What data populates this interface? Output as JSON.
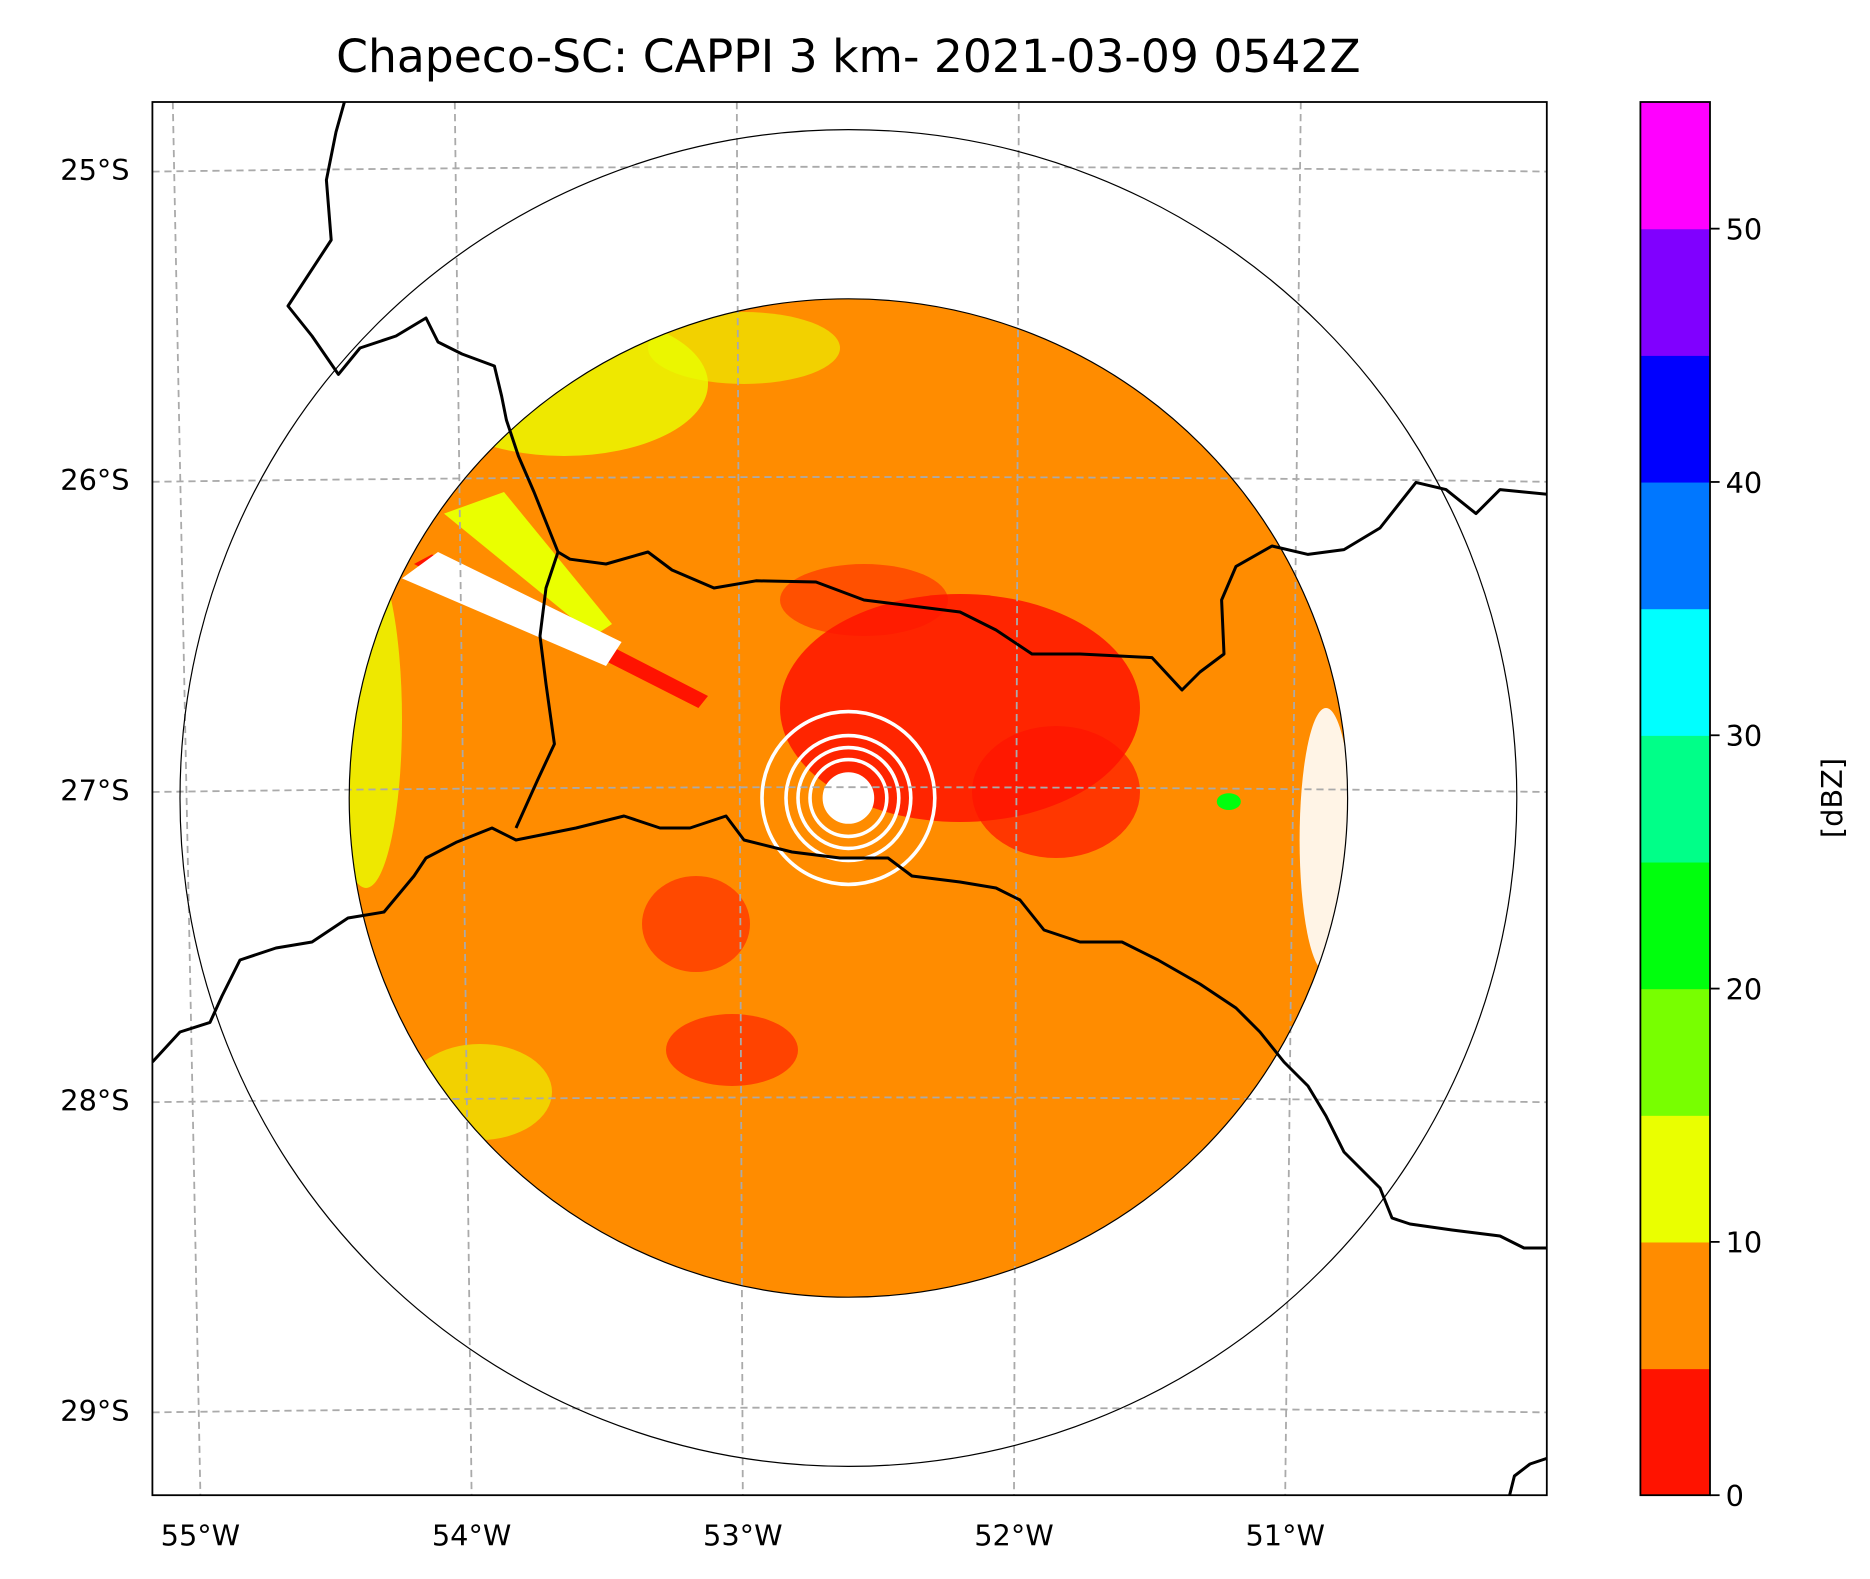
{
  "chart_data": {
    "type": "heatmap",
    "title": "Chapeco-SC: CAPPI 3 km- 2021-03-09 0542Z",
    "xlabel": "",
    "ylabel": "",
    "x_ticks": [
      {
        "value": -55,
        "label": "55°W"
      },
      {
        "value": -54,
        "label": "54°W"
      },
      {
        "value": -53,
        "label": "53°W"
      },
      {
        "value": -52,
        "label": "52°W"
      },
      {
        "value": -51,
        "label": "51°W"
      }
    ],
    "y_ticks": [
      {
        "value": -25,
        "label": "25°S"
      },
      {
        "value": -26,
        "label": "26°S"
      },
      {
        "value": -27,
        "label": "27°S"
      },
      {
        "value": -28,
        "label": "28°S"
      },
      {
        "value": -29,
        "label": "29°S"
      }
    ],
    "xlim": [
      -55.2,
      -50.1
    ],
    "ylim": [
      -29.3,
      -24.8
    ],
    "grid": true,
    "radar_center": {
      "lon": -52.6,
      "lat": -27.02
    },
    "colorbar": {
      "label": "[dBZ]",
      "levels": [
        0,
        5,
        10,
        15,
        20,
        25,
        30,
        35,
        40,
        45,
        50,
        55
      ],
      "colors": [
        "#ff1300",
        "#ff8c00",
        "#eaff00",
        "#78ff00",
        "#00ff0d",
        "#00ff88",
        "#00ffff",
        "#0077ff",
        "#0000ff",
        "#8000ff",
        "#ff00ff"
      ],
      "ticks": [
        {
          "value": 0,
          "label": "0"
        },
        {
          "value": 10,
          "label": "10"
        },
        {
          "value": 20,
          "label": "20"
        },
        {
          "value": 30,
          "label": "30"
        },
        {
          "value": 40,
          "label": "40"
        },
        {
          "value": 50,
          "label": "50"
        }
      ]
    }
  }
}
